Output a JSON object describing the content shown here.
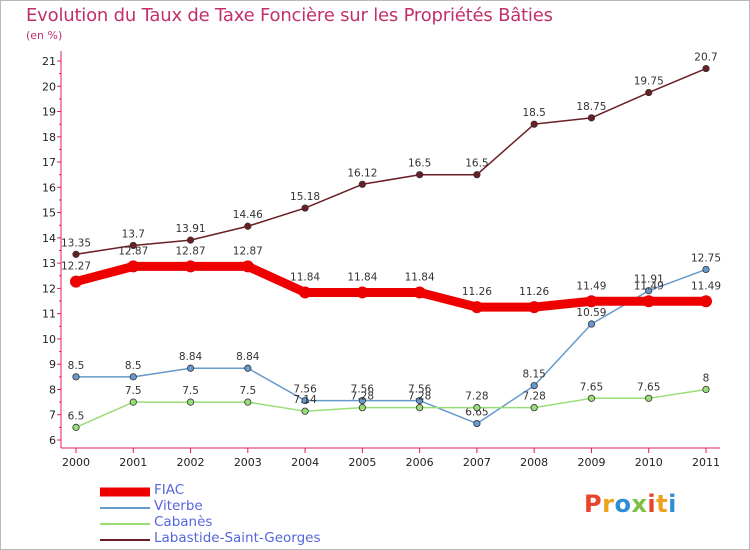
{
  "header": {
    "title": "Evolution du Taux de Taxe Foncière sur les Propriétés Bâties",
    "unit": "(en %)"
  },
  "logo": {
    "text": "Proxiti",
    "colors": [
      "#e8452c",
      "#f0a21b",
      "#2e8fd6",
      "#7cc142",
      "#e8452c",
      "#f0a21b",
      "#2e8fd6"
    ]
  },
  "chart_data": {
    "type": "line",
    "title": "Evolution du Taux de Taxe Foncière sur les Propriétés Bâties",
    "ylabel": "(en %)",
    "xlabel": "",
    "x": [
      "2000",
      "2001",
      "2002",
      "2003",
      "2004",
      "2005",
      "2006",
      "2007",
      "2008",
      "2009",
      "2010",
      "2011"
    ],
    "ylim": [
      6,
      21
    ],
    "yticks": [
      "6",
      "7",
      "8",
      "9",
      "10",
      "11",
      "12",
      "13",
      "14",
      "15",
      "16",
      "17",
      "18",
      "19",
      "20",
      "21"
    ],
    "grid": false,
    "legend_position": "bottom-left",
    "series": [
      {
        "name": "Labastide-Saint-Georges",
        "color": "#6b1e24",
        "values": [
          13.35,
          13.7,
          13.91,
          14.46,
          15.18,
          16.12,
          16.5,
          16.5,
          18.5,
          18.75,
          19.75,
          20.7
        ],
        "labels": [
          "13.35",
          "13.7",
          "13.91",
          "14.46",
          "15.18",
          "16.12",
          "16.5",
          "16.5",
          "18.5",
          "18.75",
          "19.75",
          "20.7"
        ]
      },
      {
        "name": "Viterbe",
        "color": "#6699cc",
        "values": [
          8.5,
          8.5,
          8.84,
          8.84,
          7.56,
          7.56,
          7.56,
          6.65,
          8.15,
          10.59,
          11.91,
          12.75
        ],
        "labels": [
          "8.5",
          "8.5",
          "8.84",
          "8.84",
          "7.56",
          "7.56",
          "7.56",
          "6.65",
          "8.15",
          "10.59",
          "11.91",
          "12.75"
        ]
      },
      {
        "name": "Cabanès",
        "color": "#99dd77",
        "values": [
          6.5,
          7.5,
          7.5,
          7.5,
          7.14,
          7.28,
          7.28,
          7.28,
          7.28,
          7.65,
          7.65,
          8
        ],
        "labels": [
          "6.5",
          "7.5",
          "7.5",
          "7.5",
          "7.14",
          "7.28",
          "7.28",
          "7.28",
          "7.28",
          "7.65",
          "7.65",
          "8"
        ]
      },
      {
        "name": "FIAC",
        "color": "#ee0000",
        "values": [
          12.27,
          12.87,
          12.87,
          12.87,
          11.84,
          11.84,
          11.84,
          11.26,
          11.26,
          11.49,
          11.49,
          11.49
        ],
        "labels": [
          "12.27",
          "12.87",
          "12.87",
          "12.87",
          "11.84",
          "11.84",
          "11.84",
          "11.26",
          "11.26",
          "11.49",
          "11.49",
          "11.49"
        ]
      }
    ],
    "legend": [
      "FIAC",
      "Viterbe",
      "Cabanès",
      "Labastide-Saint-Georges"
    ]
  }
}
